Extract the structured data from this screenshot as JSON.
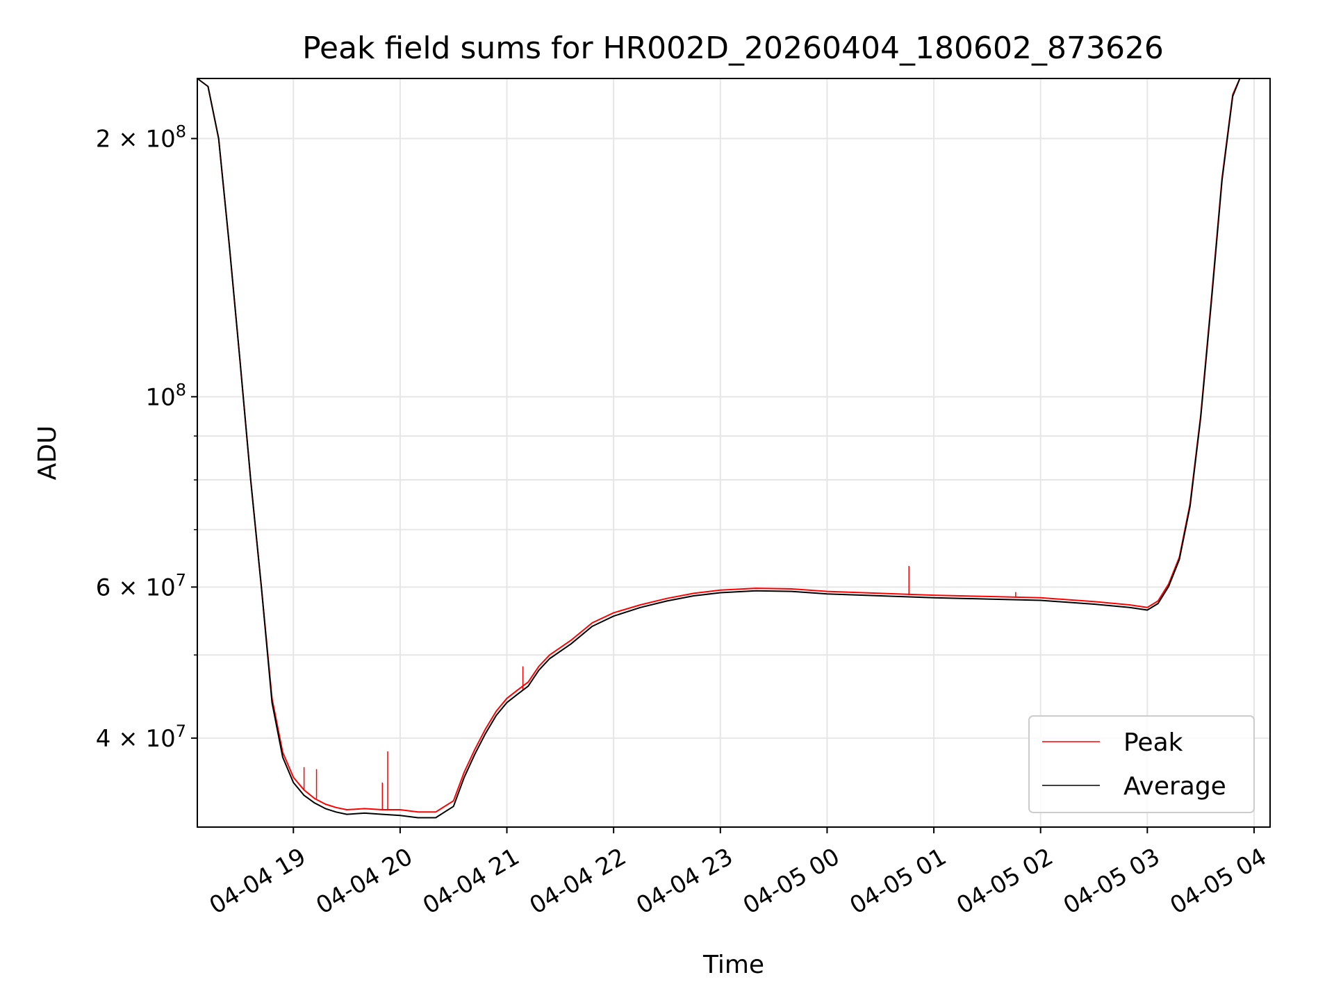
{
  "chart_data": {
    "type": "line",
    "title": "Peak field sums for HR002D_20260404_180602_873626",
    "xlabel": "Time",
    "ylabel": "ADU",
    "yscale": "log",
    "ylim": [
      31500000,
      235000000
    ],
    "xlim": [
      "2026-04-04 18:06",
      "2026-04-05 04:09"
    ],
    "x_ticks": [
      {
        "t": "2026-04-04 19:00",
        "label": "04-04 19"
      },
      {
        "t": "2026-04-04 20:00",
        "label": "04-04 20"
      },
      {
        "t": "2026-04-04 21:00",
        "label": "04-04 21"
      },
      {
        "t": "2026-04-04 22:00",
        "label": "04-04 22"
      },
      {
        "t": "2026-04-04 23:00",
        "label": "04-04 23"
      },
      {
        "t": "2026-04-05 00:00",
        "label": "04-05 00"
      },
      {
        "t": "2026-04-05 01:00",
        "label": "04-05 01"
      },
      {
        "t": "2026-04-05 02:00",
        "label": "04-05 02"
      },
      {
        "t": "2026-04-05 03:00",
        "label": "04-05 03"
      },
      {
        "t": "2026-04-05 04:00",
        "label": "04-05 04"
      }
    ],
    "y_major_ticks": [
      {
        "value": 40000000,
        "mantissa": "4",
        "exponent": "7"
      },
      {
        "value": 60000000,
        "mantissa": "6",
        "exponent": "7"
      },
      {
        "value": 100000000,
        "mantissa": "",
        "exponent": "8"
      },
      {
        "value": 200000000,
        "mantissa": "2",
        "exponent": "8"
      }
    ],
    "y_minor_ticks": [
      50000000,
      70000000,
      80000000,
      90000000
    ],
    "grid": true,
    "legend_position": "lower right",
    "series": [
      {
        "name": "Peak",
        "color": "#ff0000",
        "points": [
          [
            "2026-04-04 18:06",
            235000000
          ],
          [
            "2026-04-04 18:12",
            230000000
          ],
          [
            "2026-04-04 18:18",
            200000000
          ],
          [
            "2026-04-04 18:24",
            150000000
          ],
          [
            "2026-04-04 18:30",
            110000000
          ],
          [
            "2026-04-04 18:36",
            80000000
          ],
          [
            "2026-04-04 18:42",
            60000000
          ],
          [
            "2026-04-04 18:48",
            44500000
          ],
          [
            "2026-04-04 18:54",
            38500000
          ],
          [
            "2026-04-04 19:00",
            36000000
          ],
          [
            "2026-04-04 19:06",
            34800000
          ],
          [
            "2026-04-04 19:12",
            34000000
          ],
          [
            "2026-04-04 19:18",
            33500000
          ],
          [
            "2026-04-04 19:24",
            33200000
          ],
          [
            "2026-04-04 19:30",
            33000000
          ],
          [
            "2026-04-04 19:40",
            33100000
          ],
          [
            "2026-04-04 19:50",
            33000000
          ],
          [
            "2026-04-04 20:00",
            33000000
          ],
          [
            "2026-04-04 20:10",
            32800000
          ],
          [
            "2026-04-04 20:20",
            32800000
          ],
          [
            "2026-04-04 20:30",
            33800000
          ],
          [
            "2026-04-04 20:36",
            36500000
          ],
          [
            "2026-04-04 20:42",
            38800000
          ],
          [
            "2026-04-04 20:48",
            41000000
          ],
          [
            "2026-04-04 20:54",
            43000000
          ],
          [
            "2026-04-04 21:00",
            44500000
          ],
          [
            "2026-04-04 21:06",
            45500000
          ],
          [
            "2026-04-04 21:12",
            46500000
          ],
          [
            "2026-04-04 21:18",
            48500000
          ],
          [
            "2026-04-04 21:24",
            50000000
          ],
          [
            "2026-04-04 21:36",
            52000000
          ],
          [
            "2026-04-04 21:48",
            54500000
          ],
          [
            "2026-04-04 22:00",
            56000000
          ],
          [
            "2026-04-04 22:15",
            57200000
          ],
          [
            "2026-04-04 22:30",
            58200000
          ],
          [
            "2026-04-04 22:45",
            59000000
          ],
          [
            "2026-04-04 23:00",
            59500000
          ],
          [
            "2026-04-04 23:20",
            59800000
          ],
          [
            "2026-04-04 23:40",
            59700000
          ],
          [
            "2026-04-05 00:00",
            59300000
          ],
          [
            "2026-04-05 00:30",
            59000000
          ],
          [
            "2026-04-05 01:00",
            58700000
          ],
          [
            "2026-04-05 01:30",
            58500000
          ],
          [
            "2026-04-05 02:00",
            58300000
          ],
          [
            "2026-04-05 02:30",
            57700000
          ],
          [
            "2026-04-05 02:50",
            57200000
          ],
          [
            "2026-04-05 03:00",
            56800000
          ],
          [
            "2026-04-05 03:06",
            57800000
          ],
          [
            "2026-04-05 03:12",
            60500000
          ],
          [
            "2026-04-05 03:18",
            65000000
          ],
          [
            "2026-04-05 03:24",
            75000000
          ],
          [
            "2026-04-05 03:30",
            95000000
          ],
          [
            "2026-04-05 03:36",
            130000000
          ],
          [
            "2026-04-05 03:42",
            180000000
          ],
          [
            "2026-04-05 03:48",
            225000000
          ],
          [
            "2026-04-05 03:52",
            235000000
          ]
        ],
        "spikes": [
          [
            "2026-04-04 19:06",
            37000000
          ],
          [
            "2026-04-04 19:13",
            36800000
          ],
          [
            "2026-04-04 19:50",
            35500000
          ],
          [
            "2026-04-04 19:53",
            38600000
          ],
          [
            "2026-04-04 21:09",
            48500000
          ],
          [
            "2026-04-05 00:46",
            63500000
          ],
          [
            "2026-04-05 01:46",
            59200000
          ]
        ]
      },
      {
        "name": "Average",
        "color": "#000000",
        "points": [
          [
            "2026-04-04 18:06",
            235000000
          ],
          [
            "2026-04-04 18:12",
            230000000
          ],
          [
            "2026-04-04 18:18",
            200000000
          ],
          [
            "2026-04-04 18:24",
            150000000
          ],
          [
            "2026-04-04 18:30",
            110000000
          ],
          [
            "2026-04-04 18:36",
            80000000
          ],
          [
            "2026-04-04 18:42",
            60000000
          ],
          [
            "2026-04-04 18:48",
            44000000
          ],
          [
            "2026-04-04 18:54",
            38000000
          ],
          [
            "2026-04-04 19:00",
            35500000
          ],
          [
            "2026-04-04 19:06",
            34300000
          ],
          [
            "2026-04-04 19:12",
            33600000
          ],
          [
            "2026-04-04 19:18",
            33100000
          ],
          [
            "2026-04-04 19:24",
            32800000
          ],
          [
            "2026-04-04 19:30",
            32600000
          ],
          [
            "2026-04-04 19:40",
            32700000
          ],
          [
            "2026-04-04 19:50",
            32600000
          ],
          [
            "2026-04-04 20:00",
            32500000
          ],
          [
            "2026-04-04 20:10",
            32300000
          ],
          [
            "2026-04-04 20:20",
            32300000
          ],
          [
            "2026-04-04 20:30",
            33300000
          ],
          [
            "2026-04-04 20:36",
            36000000
          ],
          [
            "2026-04-04 20:42",
            38300000
          ],
          [
            "2026-04-04 20:48",
            40500000
          ],
          [
            "2026-04-04 20:54",
            42500000
          ],
          [
            "2026-04-04 21:00",
            44000000
          ],
          [
            "2026-04-04 21:06",
            45000000
          ],
          [
            "2026-04-04 21:12",
            46000000
          ],
          [
            "2026-04-04 21:18",
            48000000
          ],
          [
            "2026-04-04 21:24",
            49500000
          ],
          [
            "2026-04-04 21:36",
            51500000
          ],
          [
            "2026-04-04 21:48",
            54000000
          ],
          [
            "2026-04-04 22:00",
            55500000
          ],
          [
            "2026-04-04 22:15",
            56800000
          ],
          [
            "2026-04-04 22:30",
            57800000
          ],
          [
            "2026-04-04 22:45",
            58600000
          ],
          [
            "2026-04-04 23:00",
            59100000
          ],
          [
            "2026-04-04 23:20",
            59400000
          ],
          [
            "2026-04-04 23:40",
            59300000
          ],
          [
            "2026-04-05 00:00",
            58900000
          ],
          [
            "2026-04-05 00:30",
            58600000
          ],
          [
            "2026-04-05 01:00",
            58300000
          ],
          [
            "2026-04-05 01:30",
            58100000
          ],
          [
            "2026-04-05 02:00",
            57900000
          ],
          [
            "2026-04-05 02:30",
            57300000
          ],
          [
            "2026-04-05 02:50",
            56800000
          ],
          [
            "2026-04-05 03:00",
            56400000
          ],
          [
            "2026-04-05 03:06",
            57400000
          ],
          [
            "2026-04-05 03:12",
            60100000
          ],
          [
            "2026-04-05 03:18",
            64600000
          ],
          [
            "2026-04-05 03:24",
            74500000
          ],
          [
            "2026-04-05 03:30",
            94500000
          ],
          [
            "2026-04-05 03:36",
            129000000
          ],
          [
            "2026-04-05 03:42",
            179000000
          ],
          [
            "2026-04-05 03:48",
            224000000
          ],
          [
            "2026-04-05 03:52",
            235000000
          ]
        ]
      }
    ]
  }
}
